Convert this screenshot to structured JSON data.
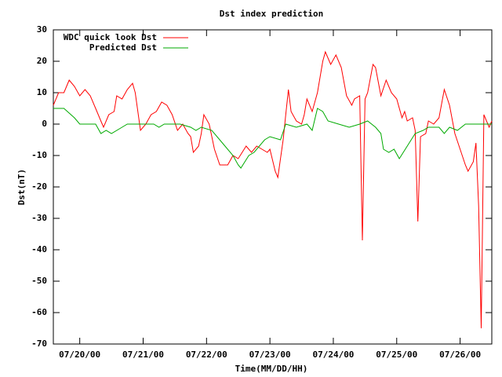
{
  "chart_data": {
    "type": "line",
    "title": "Dst index prediction",
    "x_label": "Time(MM/DD/HH)",
    "y_label": "Dst(nT)",
    "xlim": [
      "07/19/14",
      "07/26/12"
    ],
    "xticks": [
      "07/20/00",
      "07/21/00",
      "07/22/00",
      "07/23/00",
      "07/24/00",
      "07/25/00",
      "07/26/00"
    ],
    "ylim": [
      -70,
      30
    ],
    "yticks": [
      -70,
      -60,
      -50,
      -40,
      -30,
      -20,
      -10,
      0,
      10,
      20,
      30
    ],
    "legend": "top-left",
    "series": [
      {
        "name": "WDC quick look Dst",
        "color": "#ff0000",
        "x": [
          "07/19/14",
          "07/19/16",
          "07/19/18",
          "07/19/20",
          "07/19/22",
          "07/20/00",
          "07/20/02",
          "07/20/04",
          "07/20/06",
          "07/20/08",
          "07/20/09",
          "07/20/11",
          "07/20/13",
          "07/20/14",
          "07/20/16",
          "07/20/18",
          "07/20/20",
          "07/20/21",
          "07/20/23",
          "07/21/01",
          "07/21/03",
          "07/21/05",
          "07/21/07",
          "07/21/09",
          "07/21/11",
          "07/21/13",
          "07/21/15",
          "07/21/17",
          "07/21/18",
          "07/21/19",
          "07/21/21",
          "07/21/22",
          "07/21/23",
          "07/22/01",
          "07/22/03",
          "07/22/05",
          "07/22/08",
          "07/22/10",
          "07/22/12",
          "07/22/15",
          "07/22/17",
          "07/22/19",
          "07/22/21",
          "07/22/23",
          "07/23/00",
          "07/23/02",
          "07/23/03",
          "07/23/05",
          "07/23/06",
          "07/23/07",
          "07/23/08",
          "07/23/10",
          "07/23/12",
          "07/23/13",
          "07/23/14",
          "07/23/16",
          "07/23/18",
          "07/23/20",
          "07/23/21",
          "07/23/23",
          "07/24/01",
          "07/24/03",
          "07/24/05",
          "07/24/07",
          "07/24/08",
          "07/24/10",
          "07/24/11",
          "07/24/12",
          "07/24/13",
          "07/24/15",
          "07/24/16",
          "07/24/18",
          "07/24/20",
          "07/24/22",
          "07/25/00",
          "07/25/02",
          "07/25/03",
          "07/25/04",
          "07/25/06",
          "07/25/07",
          "07/25/08",
          "07/25/09",
          "07/25/11",
          "07/25/12",
          "07/25/14",
          "07/25/16",
          "07/25/18",
          "07/25/20",
          "07/25/22",
          "07/26/00",
          "07/26/02",
          "07/26/03",
          "07/26/05",
          "07/26/06",
          "07/26/07",
          "07/26/08",
          "07/26/09",
          "07/26/11",
          "07/26/12"
        ],
        "values": [
          6,
          10,
          10,
          14,
          12,
          9,
          11,
          9,
          5,
          1,
          -1,
          3,
          4,
          9,
          8,
          11,
          13,
          10,
          -2,
          0,
          3,
          4,
          7,
          6,
          3,
          -2,
          0,
          -3,
          -4,
          -9,
          -7,
          -3,
          3,
          0,
          -8,
          -13,
          -13,
          -10,
          -11,
          -7,
          -9,
          -7,
          -8,
          -9,
          -8,
          -15,
          -17,
          -5,
          3,
          11,
          4,
          1,
          0,
          3,
          8,
          4,
          10,
          20,
          23,
          19,
          22,
          18,
          9,
          6,
          8,
          9,
          -37,
          8,
          10,
          19,
          18,
          9,
          14,
          10,
          8,
          2,
          4,
          1,
          2,
          -2,
          -31,
          -4,
          -3,
          1,
          0,
          2,
          11,
          6,
          -3,
          -8,
          -13,
          -15,
          -12,
          -6,
          -26,
          -65,
          3,
          -1,
          1
        ]
      },
      {
        "name": "Predicted Dst",
        "color": "#00aa00",
        "x": [
          "07/19/14",
          "07/19/18",
          "07/19/22",
          "07/20/00",
          "07/20/06",
          "07/20/08",
          "07/20/10",
          "07/20/12",
          "07/20/16",
          "07/20/18",
          "07/21/04",
          "07/21/06",
          "07/21/08",
          "07/21/14",
          "07/21/18",
          "07/21/20",
          "07/21/22",
          "07/22/02",
          "07/22/06",
          "07/22/10",
          "07/22/12",
          "07/22/13",
          "07/22/16",
          "07/22/18",
          "07/22/22",
          "07/23/00",
          "07/23/04",
          "07/23/06",
          "07/23/10",
          "07/23/14",
          "07/23/16",
          "07/23/18",
          "07/23/20",
          "07/23/22",
          "07/24/02",
          "07/24/06",
          "07/24/10",
          "07/24/13",
          "07/24/16",
          "07/24/18",
          "07/24/19",
          "07/24/21",
          "07/24/23",
          "07/25/01",
          "07/25/04",
          "07/25/07",
          "07/25/10",
          "07/25/12",
          "07/25/16",
          "07/25/18",
          "07/25/20",
          "07/25/23",
          "07/26/02",
          "07/26/06",
          "07/26/10",
          "07/26/12"
        ],
        "values": [
          5,
          5,
          2,
          0,
          0,
          -3,
          -2,
          -3,
          -1,
          0,
          0,
          -1,
          0,
          0,
          -1,
          -2,
          -1,
          -2,
          -6,
          -10,
          -13,
          -14,
          -10,
          -9,
          -5,
          -4,
          -5,
          0,
          -1,
          0,
          -2,
          5,
          4,
          1,
          0,
          -1,
          0,
          1,
          -1,
          -3,
          -8,
          -9,
          -8,
          -11,
          -7,
          -3,
          -2,
          -1,
          -1,
          -3,
          -1,
          -2,
          0,
          0,
          0,
          0
        ]
      }
    ]
  }
}
